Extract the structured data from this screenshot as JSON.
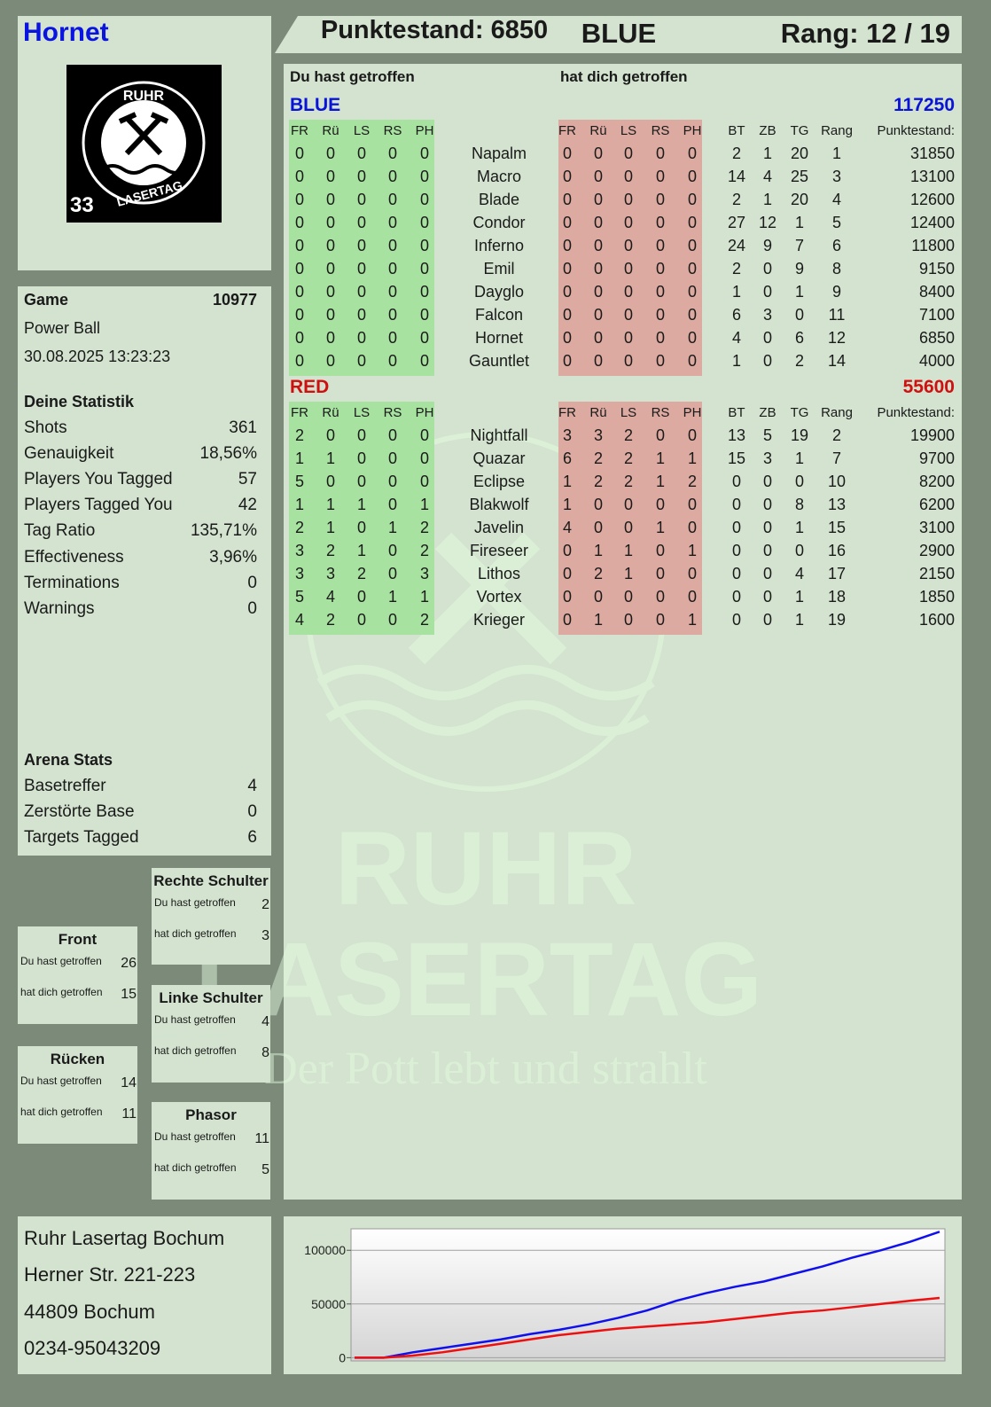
{
  "header": {
    "player": "Hornet",
    "score": "Punktestand: 6850",
    "team": "BLUE",
    "rank": "Rang: 12 / 19"
  },
  "logo": {
    "top": "RUHR",
    "bottom": "LASERTAG",
    "number": "33"
  },
  "watermark": {
    "line1": "RUHR",
    "line2": "LASERTAG",
    "slogan": "Der Pott lebt und strahlt"
  },
  "game": {
    "label": "Game",
    "id": "10977",
    "mode": "Power Ball",
    "datetime": "30.08.2025 13:23:23"
  },
  "stats": {
    "title": "Deine Statistik",
    "rows": [
      [
        "Shots",
        "361"
      ],
      [
        "Genauigkeit",
        "18,56%"
      ],
      [
        "Players You Tagged",
        "57"
      ],
      [
        "Players Tagged You",
        "42"
      ],
      [
        "Tag Ratio",
        "135,71%"
      ],
      [
        "Effectiveness",
        "3,96%"
      ],
      [
        "Terminations",
        "0"
      ],
      [
        "Warnings",
        "0"
      ]
    ]
  },
  "arena": {
    "title": "Arena Stats",
    "rows": [
      [
        "Basetreffer",
        "4"
      ],
      [
        "Zerstörte Base",
        "0"
      ],
      [
        "Targets Tagged",
        "6"
      ]
    ]
  },
  "zones": [
    {
      "title": "Rechte Schulter",
      "rows": [
        [
          "Du hast getroffen",
          "2"
        ],
        [
          "hat dich getroffen",
          "3"
        ]
      ]
    },
    {
      "title": "Front",
      "rows": [
        [
          "Du hast getroffen",
          "26"
        ],
        [
          "hat dich getroffen",
          "15"
        ]
      ]
    },
    {
      "title": "Linke Schulter",
      "rows": [
        [
          "Du hast getroffen",
          "4"
        ],
        [
          "hat dich getroffen",
          "8"
        ]
      ]
    },
    {
      "title": "Rücken",
      "rows": [
        [
          "Du hast getroffen",
          "14"
        ],
        [
          "hat dich getroffen",
          "11"
        ]
      ]
    },
    {
      "title": "Phasor",
      "rows": [
        [
          "Du hast getroffen",
          "11"
        ],
        [
          "hat dich getroffen",
          "5"
        ]
      ]
    }
  ],
  "address": [
    "Ruhr Lasertag Bochum",
    "Herner Str. 221-223",
    "44809 Bochum",
    "0234-95043209"
  ],
  "table": {
    "gave_title": "Du hast getroffen",
    "got_title": "hat dich getroffen",
    "zone_columns": [
      "FR",
      "Rü",
      "LS",
      "RS",
      "PH"
    ],
    "stat_columns": [
      "BT",
      "ZB",
      "TG",
      "Rang",
      "Punktestand:"
    ],
    "teams": [
      {
        "name": "BLUE",
        "score": "117250",
        "color": "#0a14d8",
        "rows": [
          {
            "name": "Napalm",
            "gave": [
              0,
              0,
              0,
              0,
              0
            ],
            "got": [
              0,
              0,
              0,
              0,
              0
            ],
            "stats": [
              2,
              1,
              20,
              1,
              31850
            ]
          },
          {
            "name": "Macro",
            "gave": [
              0,
              0,
              0,
              0,
              0
            ],
            "got": [
              0,
              0,
              0,
              0,
              0
            ],
            "stats": [
              14,
              4,
              25,
              3,
              13100
            ]
          },
          {
            "name": "Blade",
            "gave": [
              0,
              0,
              0,
              0,
              0
            ],
            "got": [
              0,
              0,
              0,
              0,
              0
            ],
            "stats": [
              2,
              1,
              20,
              4,
              12600
            ]
          },
          {
            "name": "Condor",
            "gave": [
              0,
              0,
              0,
              0,
              0
            ],
            "got": [
              0,
              0,
              0,
              0,
              0
            ],
            "stats": [
              27,
              12,
              1,
              5,
              12400
            ]
          },
          {
            "name": "Inferno",
            "gave": [
              0,
              0,
              0,
              0,
              0
            ],
            "got": [
              0,
              0,
              0,
              0,
              0
            ],
            "stats": [
              24,
              9,
              7,
              6,
              11800
            ]
          },
          {
            "name": "Emil",
            "gave": [
              0,
              0,
              0,
              0,
              0
            ],
            "got": [
              0,
              0,
              0,
              0,
              0
            ],
            "stats": [
              2,
              0,
              9,
              8,
              9150
            ]
          },
          {
            "name": "Dayglo",
            "gave": [
              0,
              0,
              0,
              0,
              0
            ],
            "got": [
              0,
              0,
              0,
              0,
              0
            ],
            "stats": [
              1,
              0,
              1,
              9,
              8400
            ]
          },
          {
            "name": "Falcon",
            "gave": [
              0,
              0,
              0,
              0,
              0
            ],
            "got": [
              0,
              0,
              0,
              0,
              0
            ],
            "stats": [
              6,
              3,
              0,
              11,
              7100
            ]
          },
          {
            "name": "Hornet",
            "gave": [
              0,
              0,
              0,
              0,
              0
            ],
            "got": [
              0,
              0,
              0,
              0,
              0
            ],
            "stats": [
              4,
              0,
              6,
              12,
              6850
            ]
          },
          {
            "name": "Gauntlet",
            "gave": [
              0,
              0,
              0,
              0,
              0
            ],
            "got": [
              0,
              0,
              0,
              0,
              0
            ],
            "stats": [
              1,
              0,
              2,
              14,
              4000
            ]
          }
        ]
      },
      {
        "name": "RED",
        "score": "55600",
        "color": "#d01010",
        "rows": [
          {
            "name": "Nightfall",
            "gave": [
              2,
              0,
              0,
              0,
              0
            ],
            "got": [
              3,
              3,
              2,
              0,
              0
            ],
            "stats": [
              13,
              5,
              19,
              2,
              19900
            ]
          },
          {
            "name": "Quazar",
            "gave": [
              1,
              1,
              0,
              0,
              0
            ],
            "got": [
              6,
              2,
              2,
              1,
              1
            ],
            "stats": [
              15,
              3,
              1,
              7,
              9700
            ]
          },
          {
            "name": "Eclipse",
            "gave": [
              5,
              0,
              0,
              0,
              0
            ],
            "got": [
              1,
              2,
              2,
              1,
              2
            ],
            "stats": [
              0,
              0,
              0,
              10,
              8200
            ]
          },
          {
            "name": "Blakwolf",
            "gave": [
              1,
              1,
              1,
              0,
              1
            ],
            "got": [
              1,
              0,
              0,
              0,
              0
            ],
            "stats": [
              0,
              0,
              8,
              13,
              6200
            ]
          },
          {
            "name": "Javelin",
            "gave": [
              2,
              1,
              0,
              1,
              2
            ],
            "got": [
              4,
              0,
              0,
              1,
              0
            ],
            "stats": [
              0,
              0,
              1,
              15,
              3100
            ]
          },
          {
            "name": "Fireseer",
            "gave": [
              3,
              2,
              1,
              0,
              2
            ],
            "got": [
              0,
              1,
              1,
              0,
              1
            ],
            "stats": [
              0,
              0,
              0,
              16,
              2900
            ]
          },
          {
            "name": "Lithos",
            "gave": [
              3,
              3,
              2,
              0,
              3
            ],
            "got": [
              0,
              2,
              1,
              0,
              0
            ],
            "stats": [
              0,
              0,
              4,
              17,
              2150
            ]
          },
          {
            "name": "Vortex",
            "gave": [
              5,
              4,
              0,
              1,
              1
            ],
            "got": [
              0,
              0,
              0,
              0,
              0
            ],
            "stats": [
              0,
              0,
              1,
              18,
              1850
            ]
          },
          {
            "name": "Krieger",
            "gave": [
              4,
              2,
              0,
              0,
              2
            ],
            "got": [
              0,
              1,
              0,
              0,
              1
            ],
            "stats": [
              0,
              0,
              1,
              19,
              1600
            ]
          }
        ]
      }
    ]
  },
  "chart_data": {
    "type": "line",
    "series": [
      {
        "color": "#1010ee",
        "values": [
          0,
          0,
          5000,
          9000,
          13000,
          17000,
          22000,
          26000,
          31000,
          37000,
          44000,
          53000,
          60000,
          66000,
          71000,
          78000,
          85000,
          93000,
          100000,
          108000,
          117250
        ]
      },
      {
        "color": "#ee1010",
        "values": [
          0,
          0,
          2000,
          5000,
          9000,
          13000,
          17000,
          21000,
          24000,
          27000,
          29000,
          31000,
          33000,
          36000,
          39000,
          42000,
          44000,
          47000,
          50000,
          53000,
          55600
        ]
      }
    ],
    "ylim": [
      -3000,
      120000
    ],
    "yticks": [
      0,
      50000,
      100000
    ],
    "grid": true
  }
}
